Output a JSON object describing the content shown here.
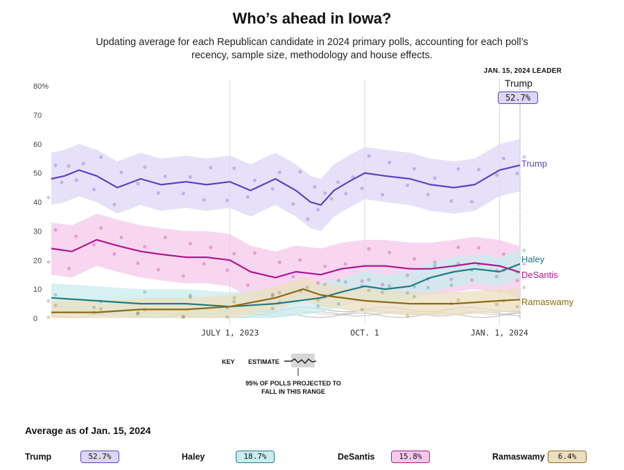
{
  "title": "Who’s ahead in Iowa?",
  "subtitle": "Updating average for each Republican candidate in 2024 primary polls, accounting for each poll’s recency, sample size, methodology and house effects.",
  "leader": {
    "heading": "JAN. 15, 2024 LEADER",
    "name": "Trump",
    "value": "52.7%"
  },
  "key": {
    "label": "KEY",
    "estimate": "ESTIMATE",
    "range": "95% OF POLLS PROJECTED TO FALL IN THIS RANGE"
  },
  "average": {
    "title": "Average as of Jan. 15, 2024",
    "items": [
      {
        "name": "Trump",
        "value": "52.7%",
        "color": "#5b3fc4",
        "fill": "#ddd6f7"
      },
      {
        "name": "Haley",
        "value": "18.7%",
        "color": "#1f7a80",
        "fill": "#c9ecee"
      },
      {
        "name": "DeSantis",
        "value": "15.8%",
        "color": "#b0158f",
        "fill": "#f6c8ea"
      },
      {
        "name": "Ramaswamy",
        "value": "6.4%",
        "color": "#8a6a12",
        "fill": "#ecdfc0"
      }
    ]
  },
  "chart_data": {
    "type": "line",
    "x_ticks": [
      "JULY 1, 2023",
      "OCT. 1",
      "JAN. 1, 2024"
    ],
    "x_tick_dates": [
      "2023-07-01",
      "2023-10-01",
      "2024-01-01"
    ],
    "x_range": [
      "2023-03-01",
      "2024-01-15"
    ],
    "y_ticks": [
      "80%",
      "70",
      "60",
      "50",
      "40",
      "30",
      "20",
      "10",
      "0"
    ],
    "y_tick_values": [
      80,
      70,
      60,
      50,
      40,
      30,
      20,
      10,
      0
    ],
    "ylim": [
      0,
      80
    ],
    "grid": "vertical",
    "series": [
      {
        "name": "Trump",
        "color": "#5b3fc4",
        "band_color": "#ddd6f7",
        "band_halfwidth": 9,
        "dates": [
          "2023-03-01",
          "2023-03-10",
          "2023-03-20",
          "2023-04-01",
          "2023-04-15",
          "2023-05-01",
          "2023-05-15",
          "2023-06-01",
          "2023-06-15",
          "2023-07-01",
          "2023-07-15",
          "2023-08-01",
          "2023-08-15",
          "2023-08-25",
          "2023-09-01",
          "2023-09-10",
          "2023-09-20",
          "2023-10-01",
          "2023-10-15",
          "2023-11-01",
          "2023-11-15",
          "2023-12-01",
          "2023-12-15",
          "2024-01-01",
          "2024-01-15"
        ],
        "values": [
          48,
          49,
          51,
          49,
          45,
          48,
          46,
          47,
          46,
          47,
          44,
          48,
          44,
          40,
          39,
          44,
          47,
          50,
          49,
          48,
          46,
          45,
          46,
          51,
          52.7
        ]
      },
      {
        "name": "DeSantis",
        "color": "#b0158f",
        "band_color": "#f6c8ea",
        "band_halfwidth": 9,
        "dates": [
          "2023-03-01",
          "2023-03-15",
          "2023-04-01",
          "2023-04-15",
          "2023-05-01",
          "2023-05-15",
          "2023-06-01",
          "2023-06-15",
          "2023-07-01",
          "2023-07-15",
          "2023-08-01",
          "2023-08-15",
          "2023-09-01",
          "2023-09-15",
          "2023-10-01",
          "2023-10-15",
          "2023-11-01",
          "2023-11-15",
          "2023-12-01",
          "2023-12-15",
          "2024-01-01",
          "2024-01-15"
        ],
        "values": [
          24,
          23,
          27,
          25,
          23,
          22,
          21,
          21,
          20,
          16,
          14,
          16,
          15,
          17,
          18,
          18,
          17,
          17,
          18,
          19,
          18,
          15.8
        ]
      },
      {
        "name": "Haley",
        "color": "#1f7a80",
        "band_color": "#c9ecee",
        "band_halfwidth": 5,
        "dates": [
          "2023-03-01",
          "2023-04-01",
          "2023-05-01",
          "2023-06-01",
          "2023-07-01",
          "2023-08-01",
          "2023-09-01",
          "2023-09-15",
          "2023-10-01",
          "2023-10-15",
          "2023-11-01",
          "2023-11-15",
          "2023-12-01",
          "2023-12-15",
          "2024-01-01",
          "2024-01-15"
        ],
        "values": [
          7,
          6,
          5,
          5,
          4,
          5,
          7,
          9,
          11,
          10,
          11,
          14,
          16,
          17,
          16,
          18.7
        ]
      },
      {
        "name": "Ramaswamy",
        "color": "#8a6a12",
        "band_color": "#ecdfc0",
        "band_halfwidth": 4,
        "dates": [
          "2023-03-01",
          "2023-04-01",
          "2023-05-01",
          "2023-06-01",
          "2023-07-01",
          "2023-08-01",
          "2023-08-20",
          "2023-09-01",
          "2023-10-01",
          "2023-11-01",
          "2023-12-01",
          "2024-01-01",
          "2024-01-15"
        ],
        "values": [
          2,
          2,
          3,
          3,
          4,
          7,
          10,
          8,
          6,
          5,
          5,
          6,
          6.4
        ]
      }
    ]
  }
}
